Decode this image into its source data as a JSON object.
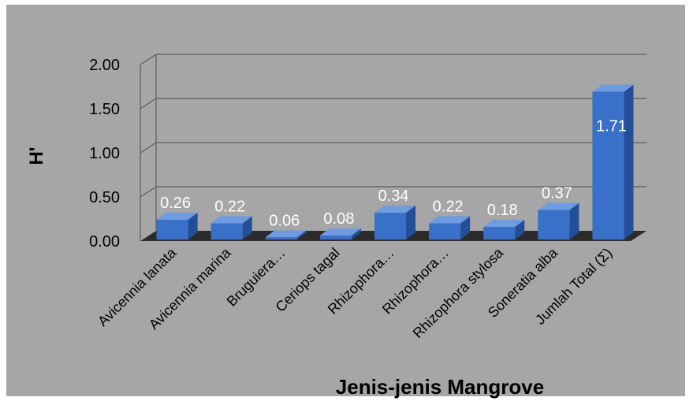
{
  "chart_data": {
    "type": "bar",
    "title": "",
    "xlabel": "Jenis-jenis Mangrove",
    "ylabel": "H'",
    "ylim": [
      0,
      2
    ],
    "yticks": [
      "0.00",
      "0.50",
      "1.00",
      "1.50",
      "2.00"
    ],
    "grid": true,
    "style": "3d-column",
    "categories": [
      "Avicennia lanata",
      "Avicennia marina",
      "Bruguiera…",
      "Ceriops tagal",
      "Rhizophora…",
      "Rhizophora…",
      "Rhizophora stylosa",
      "Soneratia alba",
      "Jumlah Total (Σ)"
    ],
    "values": [
      0.26,
      0.22,
      0.06,
      0.08,
      0.34,
      0.22,
      0.18,
      0.37,
      1.71
    ],
    "data_labels": [
      "0.26",
      "0.22",
      "0.06",
      "0.08",
      "0.34",
      "0.22",
      "0.18",
      "0.37",
      "1.71"
    ],
    "colors": {
      "background": "#a6a6a6",
      "bar_front": "#3a71c8",
      "bar_top": "#6f9be0",
      "bar_side": "#234f99",
      "floor": "#2b2b2b",
      "grid": "#5c5c5c",
      "label": "#ffffff"
    }
  }
}
